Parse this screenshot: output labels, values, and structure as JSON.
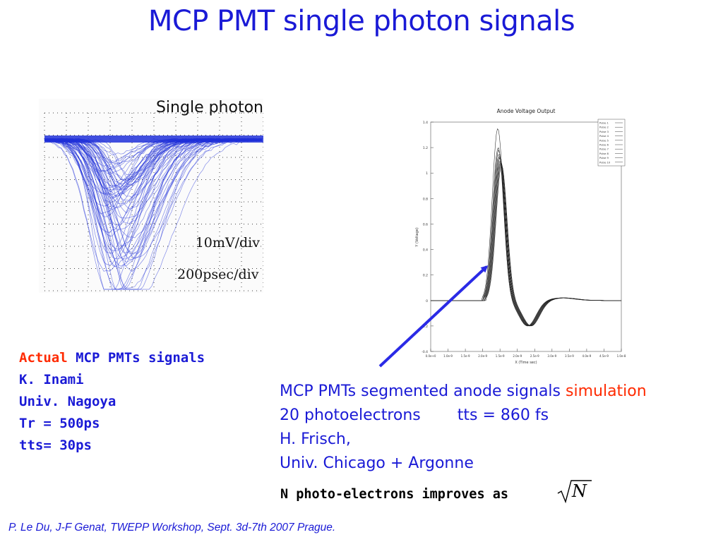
{
  "slide": {
    "title": "MCP PMT single photon signals",
    "footer": "P. Le Du,   J-F Genat,   TWEPP  Workshop,   Sept. 3d-7th   2007 Prague."
  },
  "scope_image": {
    "label_title": "Single photon",
    "label_volts": "10mV/div",
    "label_time": "200psec/div",
    "trace_color": "#1f2fd8"
  },
  "left_text": {
    "actual": "Actual",
    "line1_rest": " MCP PMTs signals",
    "lines": [
      "K. Inami",
      "Univ. Nagoya",
      "Tr = 500ps",
      "tts= 30ps"
    ]
  },
  "simulation_plot": {
    "title": "Anode Voltage Output",
    "ylabel": "Y (Voltage)",
    "xlabel": "X (Time sec)",
    "yticks": [
      "1.4",
      "1.2",
      "1",
      "0.8",
      "0.6",
      "0.4",
      "0.2",
      "0",
      "-0.2",
      "-0.4"
    ],
    "xticks": [
      "0.0e+0",
      "1.0e-9",
      "1.5e-9",
      "2.0e-9",
      "1.5e-9",
      "2.0e-9",
      "2.5e-9",
      "3.0e-9",
      "3.5e-9",
      "4.0e-9",
      "4.5e-9",
      "1.0e-8"
    ],
    "legend": [
      "Pulse 1",
      "Pulse 2",
      "Pulse 3",
      "Pulse 4",
      "Pulse 5",
      "Pulse 6",
      "Pulse 7",
      "Pulse 8",
      "Pulse 9",
      "Pulse 10"
    ]
  },
  "right_text": {
    "line1": "MCP PMTs segmented anode signals ",
    "simulation": "simulation",
    "photoelectrons": "20 photoelectrons",
    "tts": "tts  = 860 fs",
    "author": "H. Frisch,",
    "institution": "Univ. Chicago + Argonne"
  },
  "formula": {
    "text": "N photo-electrons improves as",
    "symbol": "N"
  },
  "colors": {
    "title_blue": "#1a1ad6",
    "red": "#ff2a00",
    "arrow_blue": "#2a2ae6"
  }
}
